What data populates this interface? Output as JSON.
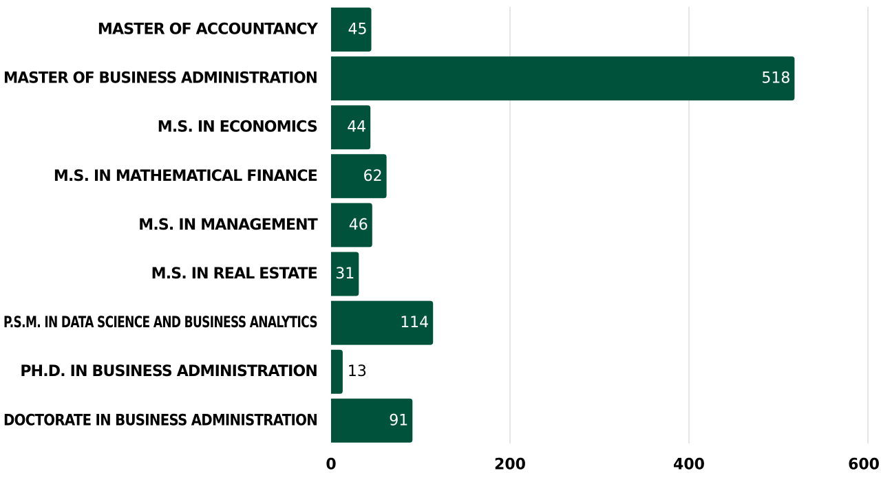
{
  "chart_data": {
    "type": "bar",
    "orientation": "horizontal",
    "categories": [
      "MASTER OF ACCOUNTANCY",
      "MASTER OF BUSINESS ADMINISTRATION",
      "M.S. IN ECONOMICS",
      "M.S. IN MATHEMATICAL FINANCE",
      "M.S. IN MANAGEMENT",
      "M.S. IN REAL ESTATE",
      "P.S.M. IN DATA SCIENCE AND BUSINESS ANALYTICS",
      "PH.D. IN BUSINESS ADMINISTRATION",
      "DOCTORATE IN BUSINESS ADMINISTRATION"
    ],
    "values": [
      45,
      518,
      44,
      62,
      46,
      31,
      114,
      13,
      91
    ],
    "xlim": [
      0,
      600
    ],
    "xticks": [
      0,
      200,
      400,
      600
    ],
    "grid": true,
    "bar_color": "#00533a",
    "grid_color": "#cccccc",
    "label_inside_color": "#ffffff",
    "label_outside_color": "#000000"
  }
}
